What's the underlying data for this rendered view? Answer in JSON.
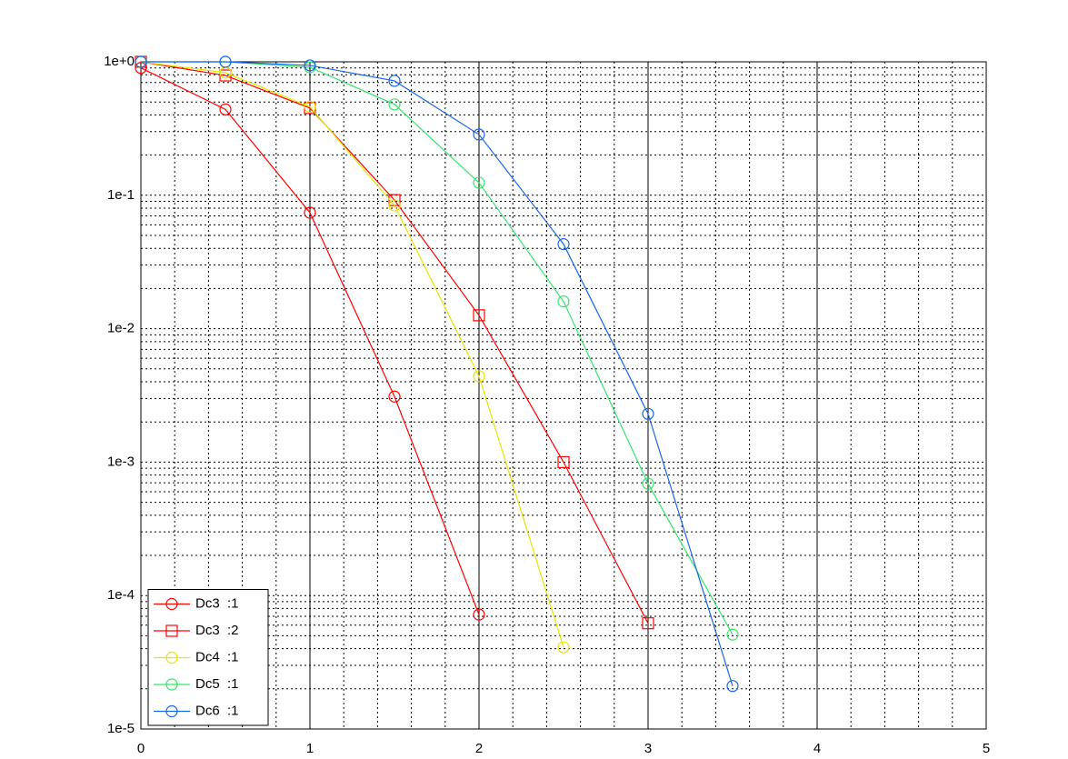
{
  "chart_data": {
    "type": "line",
    "x": [
      0,
      0.5,
      1,
      1.5,
      2,
      2.5,
      3,
      3.5
    ],
    "series": [
      {
        "name": "Dc3  :1",
        "color": "#ff0000",
        "marker": "circle",
        "values": [
          0.9,
          0.44,
          0.074,
          0.0031,
          7.2e-05,
          null,
          null,
          null
        ]
      },
      {
        "name": "Dc3  :2",
        "color": "#ff0000",
        "marker": "square",
        "values": [
          1.0,
          0.79,
          0.45,
          0.092,
          0.0126,
          0.001,
          6.2e-05,
          null
        ]
      },
      {
        "name": "Dc4  :1",
        "color": "#e6e600",
        "marker": "circle",
        "values": [
          1.0,
          0.83,
          0.46,
          0.084,
          0.0044,
          4.1e-05,
          null,
          null
        ]
      },
      {
        "name": "Dc5  :1",
        "color": "#33e66b",
        "marker": "circle",
        "values": [
          1.0,
          1.0,
          0.91,
          0.48,
          0.124,
          0.016,
          0.00069,
          5.1e-05
        ]
      },
      {
        "name": "Dc6  :1",
        "color": "#1a66e6",
        "marker": "circle",
        "values": [
          1.0,
          1.0,
          0.94,
          0.72,
          0.285,
          0.043,
          0.0023,
          2.1e-05
        ]
      }
    ],
    "xlim": [
      0,
      5
    ],
    "xticks": [
      0,
      1,
      2,
      3,
      4,
      5
    ],
    "ylim": [
      1e-05,
      1
    ],
    "yticks": [
      {
        "value": 1e-05,
        "label": "1e-5"
      },
      {
        "value": 0.0001,
        "label": "1e-4"
      },
      {
        "value": 0.001,
        "label": "1e-3"
      },
      {
        "value": 0.01,
        "label": "1e-2"
      },
      {
        "value": 0.1,
        "label": "1e-1"
      },
      {
        "value": 1,
        "label": "1e+0"
      }
    ],
    "log_y": true,
    "grid": true,
    "minor_grid": true,
    "legend": "lower left"
  }
}
